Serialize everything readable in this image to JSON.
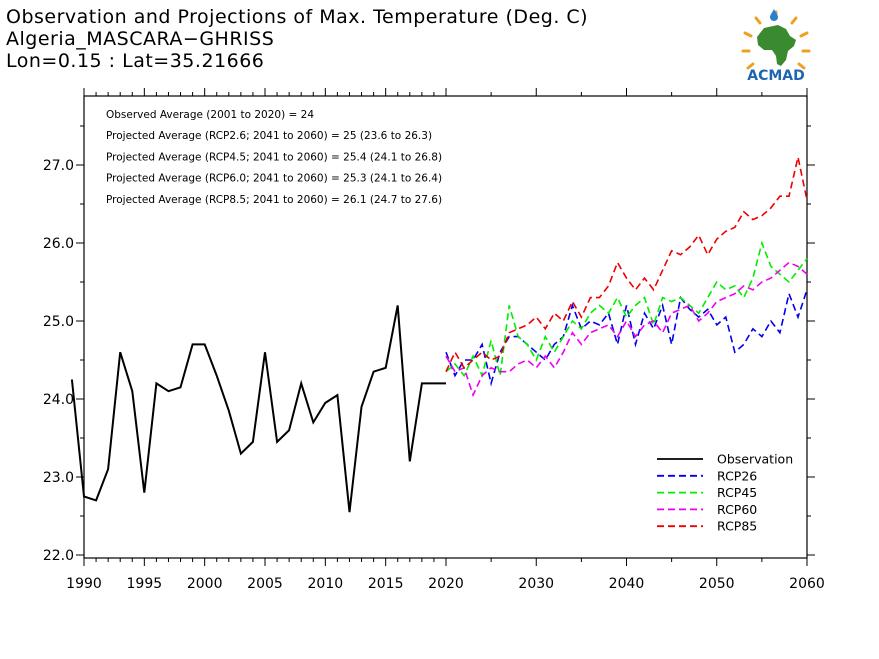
{
  "title": {
    "line1": "Observation and Projections of Max. Temperature (Deg. C)",
    "line2": "Algeria_MASCARA−GHRISS",
    "line3": "Lon=0.15 : Lat=35.21666"
  },
  "logo": {
    "text": "ACMAD",
    "colors": {
      "africa": "#3a8a2f",
      "rays": "#f0a020",
      "drop": "#2a7fd4",
      "text": "#1f66b0"
    }
  },
  "chart_data": {
    "type": "line",
    "ylim": [
      22,
      27.9
    ],
    "xlim": [
      1989,
      2061
    ],
    "y_ticks": [
      "22.0",
      "23.0",
      "24.0",
      "25.0",
      "26.0",
      "27.0"
    ],
    "y_tick_values": [
      22,
      23,
      24,
      25,
      26,
      27
    ],
    "x_ticks": [
      "1990",
      "1995",
      "2000",
      "2005",
      "2010",
      "2015",
      "2020",
      "2030",
      "2040",
      "2050",
      "2060"
    ],
    "x_tick_values": [
      1990,
      1995,
      2000,
      2005,
      2010,
      2015,
      2020,
      2030,
      2040,
      2050,
      2060
    ],
    "x_scale": "piecewise: 1990-2020 wide, 2020-2060 compressed",
    "annotations": [
      "Observed Average (2001 to 2020) = 24",
      "Projected Average (RCP2.6; 2041 to 2060) = 25 (23.6 to 26.3)",
      "Projected Average (RCP4.5; 2041 to 2060) = 25.4 (24.1 to 26.8)",
      "Projected Average (RCP6.0; 2041 to 2060) = 25.3 (24.1 to 26.4)",
      "Projected Average (RCP8.5; 2041 to 2060) = 26.1 (24.7 to 27.6)"
    ],
    "legend_position": "bottom-right",
    "series": [
      {
        "name": "Observation",
        "color": "#000000",
        "style": "solid",
        "x": [
          1989,
          1990,
          1991,
          1992,
          1993,
          1994,
          1995,
          1996,
          1997,
          1998,
          1999,
          2000,
          2001,
          2002,
          2003,
          2004,
          2005,
          2006,
          2007,
          2008,
          2009,
          2010,
          2011,
          2012,
          2013,
          2014,
          2015,
          2016,
          2017,
          2018,
          2019,
          2020
        ],
        "values": [
          24.25,
          22.75,
          22.7,
          23.1,
          24.6,
          24.1,
          22.8,
          24.2,
          24.1,
          24.15,
          24.7,
          24.7,
          24.3,
          23.85,
          23.3,
          23.45,
          24.6,
          23.45,
          23.6,
          24.2,
          23.7,
          23.95,
          24.05,
          22.55,
          23.9,
          24.35,
          24.4,
          25.2,
          23.2,
          24.2,
          24.2,
          24.2
        ]
      },
      {
        "name": "RCP26",
        "color": "#0000ee",
        "style": "dashed",
        "x": [
          2020,
          2021,
          2022,
          2023,
          2024,
          2025,
          2026,
          2027,
          2028,
          2029,
          2030,
          2031,
          2032,
          2033,
          2034,
          2035,
          2036,
          2037,
          2038,
          2039,
          2040,
          2041,
          2042,
          2043,
          2044,
          2045,
          2046,
          2047,
          2048,
          2049,
          2050,
          2051,
          2052,
          2053,
          2054,
          2055,
          2056,
          2057,
          2058,
          2059,
          2060
        ],
        "values": [
          24.6,
          24.3,
          24.5,
          24.5,
          24.7,
          24.2,
          24.6,
          24.8,
          24.8,
          24.7,
          24.6,
          24.5,
          24.7,
          24.8,
          25.2,
          24.9,
          25.0,
          24.95,
          25.1,
          24.7,
          25.2,
          24.7,
          25.1,
          24.9,
          25.2,
          24.7,
          25.3,
          25.15,
          25.05,
          25.15,
          24.95,
          25.05,
          24.6,
          24.7,
          24.9,
          24.8,
          25.0,
          24.85,
          25.35,
          25.05,
          25.4
        ]
      },
      {
        "name": "RCP45",
        "color": "#00ee00",
        "style": "dashed",
        "x": [
          2020,
          2021,
          2022,
          2023,
          2024,
          2025,
          2026,
          2027,
          2028,
          2029,
          2030,
          2031,
          2032,
          2033,
          2034,
          2035,
          2036,
          2037,
          2038,
          2039,
          2040,
          2041,
          2042,
          2043,
          2044,
          2045,
          2046,
          2047,
          2048,
          2049,
          2050,
          2051,
          2052,
          2053,
          2054,
          2055,
          2056,
          2057,
          2058,
          2059,
          2060
        ],
        "values": [
          24.35,
          24.45,
          24.3,
          24.55,
          24.3,
          24.75,
          24.3,
          25.2,
          24.8,
          24.7,
          24.5,
          24.8,
          24.6,
          24.8,
          25.0,
          24.9,
          25.1,
          25.2,
          25.1,
          25.3,
          25.05,
          25.2,
          25.3,
          24.95,
          25.3,
          25.25,
          25.3,
          25.2,
          25.1,
          25.3,
          25.5,
          25.4,
          25.45,
          25.3,
          25.55,
          26.0,
          25.7,
          25.6,
          25.5,
          25.65,
          25.8
        ]
      },
      {
        "name": "RCP60",
        "color": "#ee00ee",
        "style": "dashed",
        "x": [
          2020,
          2021,
          2022,
          2023,
          2024,
          2025,
          2026,
          2027,
          2028,
          2029,
          2030,
          2031,
          2032,
          2033,
          2034,
          2035,
          2036,
          2037,
          2038,
          2039,
          2040,
          2041,
          2042,
          2043,
          2044,
          2045,
          2046,
          2047,
          2048,
          2049,
          2050,
          2051,
          2052,
          2053,
          2054,
          2055,
          2056,
          2057,
          2058,
          2059,
          2060
        ],
        "values": [
          24.55,
          24.35,
          24.4,
          24.05,
          24.3,
          24.4,
          24.35,
          24.35,
          24.45,
          24.5,
          24.4,
          24.55,
          24.4,
          24.6,
          24.85,
          24.7,
          24.85,
          24.9,
          24.95,
          24.8,
          25.0,
          24.8,
          24.95,
          25.0,
          24.85,
          25.1,
          25.15,
          25.2,
          25.0,
          25.1,
          25.25,
          25.3,
          25.35,
          25.45,
          25.4,
          25.5,
          25.55,
          25.65,
          25.75,
          25.7,
          25.6
        ]
      },
      {
        "name": "RCP85",
        "color": "#ee0000",
        "style": "dashed",
        "x": [
          2020,
          2021,
          2022,
          2023,
          2024,
          2025,
          2026,
          2027,
          2028,
          2029,
          2030,
          2031,
          2032,
          2033,
          2034,
          2035,
          2036,
          2037,
          2038,
          2039,
          2040,
          2041,
          2042,
          2043,
          2044,
          2045,
          2046,
          2047,
          2048,
          2049,
          2050,
          2051,
          2052,
          2053,
          2054,
          2055,
          2056,
          2057,
          2058,
          2059,
          2060
        ],
        "values": [
          24.35,
          24.6,
          24.4,
          24.5,
          24.6,
          24.5,
          24.55,
          24.85,
          24.9,
          24.95,
          25.05,
          24.9,
          25.1,
          25.0,
          25.25,
          25.05,
          25.3,
          25.3,
          25.45,
          25.75,
          25.55,
          25.4,
          25.55,
          25.4,
          25.65,
          25.9,
          25.85,
          25.95,
          26.1,
          25.85,
          26.05,
          26.15,
          26.2,
          26.4,
          26.3,
          26.35,
          26.45,
          26.6,
          26.6,
          27.1,
          26.55
        ]
      }
    ]
  }
}
